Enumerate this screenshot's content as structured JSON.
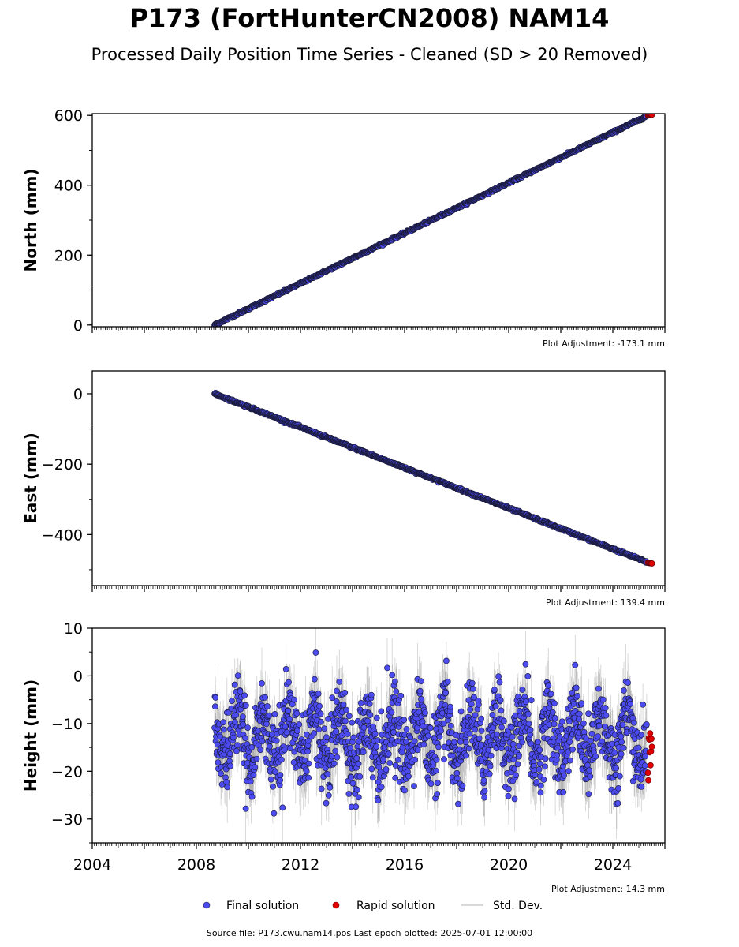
{
  "title": "P173 (FortHunterCN2008) NAM14",
  "subtitle": "Processed Daily Position Time Series - Cleaned (SD > 20 Removed)",
  "footer": "Source file: P173.cwu.nam14.pos  Last epoch plotted: 2025-07-01 12:00:00",
  "colors": {
    "final": "#4b4bf0",
    "rapid": "#e00000",
    "stddev": "#aaaaaa",
    "edge": "#1a1a3a"
  },
  "chart_data": [
    {
      "type": "scatter",
      "ylabel": "North (mm)",
      "xlim": [
        2004.0,
        2026.0
      ],
      "ylim": [
        -5,
        605
      ],
      "yticks": [
        0,
        200,
        400,
        600
      ],
      "ytick_labels": [
        "0",
        "200",
        "400",
        "600"
      ],
      "xticks": [
        2004,
        2008,
        2012,
        2016,
        2020,
        2024
      ],
      "show_x_labels": false,
      "adjustment": "Plot Adjustment: -173.1 mm",
      "series": [
        {
          "name": "Final solution",
          "x": [
            2008.7,
            2025.3
          ],
          "y": [
            0,
            598
          ],
          "kind": "linear-trend"
        },
        {
          "name": "Rapid solution",
          "x": [
            2025.35,
            2025.5
          ],
          "y": [
            600,
            602
          ],
          "kind": "points"
        }
      ]
    },
    {
      "type": "scatter",
      "ylabel": "East (mm)",
      "xlim": [
        2004.0,
        2026.0
      ],
      "ylim": [
        -545,
        65
      ],
      "yticks": [
        0,
        -200,
        -400
      ],
      "ytick_labels": [
        "0",
        "−200",
        "−400"
      ],
      "xticks": [
        2004,
        2008,
        2012,
        2016,
        2020,
        2024
      ],
      "show_x_labels": false,
      "adjustment": "Plot Adjustment: 139.4 mm",
      "series": [
        {
          "name": "Final solution",
          "x": [
            2008.7,
            2025.3
          ],
          "y": [
            0,
            -478
          ],
          "kind": "linear-trend"
        },
        {
          "name": "Rapid solution",
          "x": [
            2025.35,
            2025.5
          ],
          "y": [
            -480,
            -482
          ],
          "kind": "points"
        }
      ]
    },
    {
      "type": "scatter",
      "ylabel": "Height (mm)",
      "xlim": [
        2004.0,
        2026.0
      ],
      "ylim": [
        -35,
        10
      ],
      "yticks": [
        10,
        0,
        -10,
        -20,
        -30
      ],
      "ytick_labels": [
        "10",
        "0",
        "−10",
        "−20",
        "−30"
      ],
      "xticks": [
        2004,
        2008,
        2012,
        2016,
        2020,
        2024
      ],
      "xtick_labels": [
        "2004",
        "2008",
        "2012",
        "2016",
        "2020",
        "2024"
      ],
      "show_x_labels": true,
      "adjustment": "Plot Adjustment: 14.3 mm",
      "series": [
        {
          "name": "Final solution",
          "x_range": [
            2008.7,
            2025.3
          ],
          "mean": -13,
          "seasonal_amplitude": 5,
          "noise": 4,
          "kind": "noisy-seasonal"
        },
        {
          "name": "Rapid solution",
          "x_range": [
            2025.35,
            2025.5
          ],
          "y_range": [
            -22,
            -12
          ],
          "kind": "points"
        }
      ]
    }
  ],
  "legend": [
    {
      "label": "Final solution",
      "style": "dot-final"
    },
    {
      "label": "Rapid solution",
      "style": "dot-rapid"
    },
    {
      "label": "Std. Dev.",
      "style": "line-stddev"
    }
  ]
}
